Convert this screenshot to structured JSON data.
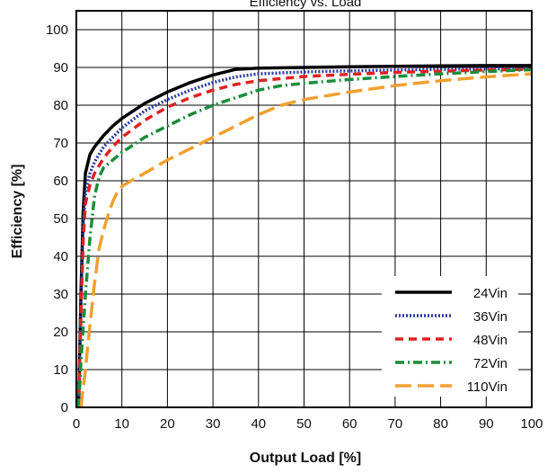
{
  "chart_data": {
    "type": "line",
    "title": "Efficiency vs. Load",
    "xlabel": "Output Load [%]",
    "ylabel": "Efficiency [%]",
    "xlim": [
      0,
      100
    ],
    "ylim": [
      0,
      105
    ],
    "x_ticks": [
      0,
      10,
      20,
      30,
      40,
      50,
      60,
      70,
      80,
      90,
      100
    ],
    "y_ticks": [
      0,
      10,
      20,
      30,
      40,
      50,
      60,
      70,
      80,
      90,
      100
    ],
    "grid": true,
    "legend_position": "bottom-right",
    "series": [
      {
        "name": "24Vin",
        "color": "#000000",
        "dash": "solid",
        "points": [
          [
            0.5,
            0
          ],
          [
            1,
            30
          ],
          [
            1.5,
            52
          ],
          [
            2,
            62
          ],
          [
            3,
            67
          ],
          [
            4,
            69
          ],
          [
            6,
            72
          ],
          [
            8,
            74.5
          ],
          [
            10,
            76.5
          ],
          [
            15,
            80.5
          ],
          [
            20,
            83.5
          ],
          [
            25,
            86
          ],
          [
            30,
            88
          ],
          [
            35,
            89.5
          ],
          [
            40,
            89.8
          ],
          [
            50,
            90
          ],
          [
            60,
            90.2
          ],
          [
            70,
            90.3
          ],
          [
            80,
            90.4
          ],
          [
            90,
            90.5
          ],
          [
            100,
            90.5
          ]
        ]
      },
      {
        "name": "36Vin",
        "color": "#2a3a9a",
        "dash": "dotted",
        "points": [
          [
            0.5,
            0
          ],
          [
            1,
            28
          ],
          [
            1.5,
            48
          ],
          [
            2,
            57
          ],
          [
            3,
            62
          ],
          [
            4,
            65
          ],
          [
            6,
            69
          ],
          [
            8,
            71.5
          ],
          [
            10,
            74
          ],
          [
            15,
            78.5
          ],
          [
            20,
            81.5
          ],
          [
            25,
            84
          ],
          [
            30,
            86
          ],
          [
            35,
            87.5
          ],
          [
            40,
            88.3
          ],
          [
            50,
            88.8
          ],
          [
            60,
            89.1
          ],
          [
            70,
            89.3
          ],
          [
            80,
            89.5
          ],
          [
            90,
            89.6
          ],
          [
            100,
            89.7
          ]
        ]
      },
      {
        "name": "48Vin",
        "color": "#dd2222",
        "dash": "dashed",
        "points": [
          [
            0.5,
            0
          ],
          [
            1,
            25
          ],
          [
            1.5,
            44
          ],
          [
            2,
            54
          ],
          [
            3,
            59
          ],
          [
            4,
            62
          ],
          [
            6,
            66
          ],
          [
            8,
            69
          ],
          [
            10,
            71.5
          ],
          [
            15,
            76
          ],
          [
            20,
            79.5
          ],
          [
            25,
            82
          ],
          [
            30,
            84
          ],
          [
            35,
            85.5
          ],
          [
            40,
            86.5
          ],
          [
            50,
            87.6
          ],
          [
            60,
            88.2
          ],
          [
            70,
            88.7
          ],
          [
            80,
            89
          ],
          [
            90,
            89.3
          ],
          [
            100,
            89.5
          ]
        ]
      },
      {
        "name": "72Vin",
        "color": "#1a8c3a",
        "dash": "dashdot",
        "points": [
          [
            0.5,
            0
          ],
          [
            1,
            12
          ],
          [
            2,
            30
          ],
          [
            3,
            45
          ],
          [
            4,
            56
          ],
          [
            5,
            61
          ],
          [
            6,
            63.5
          ],
          [
            8,
            65.5
          ],
          [
            10,
            67.5
          ],
          [
            15,
            71.5
          ],
          [
            20,
            74.5
          ],
          [
            25,
            77.5
          ],
          [
            30,
            80
          ],
          [
            35,
            82
          ],
          [
            40,
            84
          ],
          [
            45,
            85.2
          ],
          [
            50,
            85.8
          ],
          [
            60,
            86.8
          ],
          [
            70,
            87.6
          ],
          [
            80,
            88.3
          ],
          [
            90,
            88.9
          ],
          [
            100,
            89.4
          ]
        ]
      },
      {
        "name": "110Vin",
        "color": "#f0a030",
        "dash": "longdash",
        "points": [
          [
            1,
            0
          ],
          [
            2,
            10
          ],
          [
            3,
            22
          ],
          [
            4,
            33
          ],
          [
            5,
            42
          ],
          [
            6,
            47
          ],
          [
            7,
            51
          ],
          [
            8,
            54.5
          ],
          [
            9,
            57
          ],
          [
            10,
            58.5
          ],
          [
            12,
            60
          ],
          [
            15,
            62
          ],
          [
            20,
            65.5
          ],
          [
            25,
            68.5
          ],
          [
            30,
            71.5
          ],
          [
            35,
            74.5
          ],
          [
            40,
            77.5
          ],
          [
            45,
            80
          ],
          [
            50,
            81.5
          ],
          [
            60,
            83.5
          ],
          [
            70,
            85.2
          ],
          [
            80,
            86.5
          ],
          [
            90,
            87.5
          ],
          [
            100,
            88.3
          ]
        ]
      }
    ]
  }
}
